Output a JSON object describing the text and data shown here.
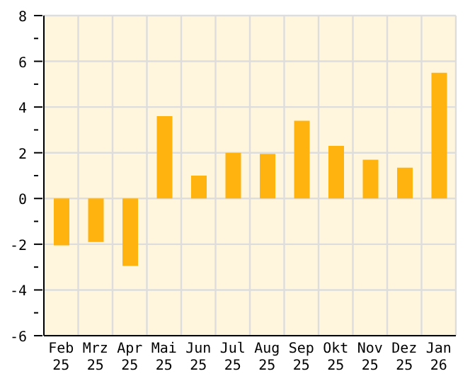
{
  "chart_data": {
    "type": "bar",
    "categories": [
      "Feb 25",
      "Mrz 25",
      "Apr 25",
      "Mai 25",
      "Jun 25",
      "Jul 25",
      "Aug 25",
      "Sep 25",
      "Okt 25",
      "Nov 25",
      "Dez 25",
      "Jan 26"
    ],
    "values": [
      -2.05,
      -1.9,
      -2.95,
      3.6,
      1.0,
      2.0,
      1.95,
      3.4,
      2.3,
      1.7,
      1.35,
      5.5
    ],
    "color": "#ffb30f",
    "ylim": [
      -6,
      8
    ],
    "yticks": [
      -6,
      {
        "value": -5,
        "label": null
      },
      -4,
      {
        "value": -3,
        "label": null
      },
      -2,
      {
        "value": -1,
        "label": null
      },
      0,
      {
        "value": 1,
        "label": null
      },
      2,
      {
        "value": 3,
        "label": null
      },
      4,
      {
        "value": 5,
        "label": null
      },
      6,
      {
        "value": 7,
        "label": null
      },
      8
    ],
    "grid": true,
    "legend": false
  }
}
